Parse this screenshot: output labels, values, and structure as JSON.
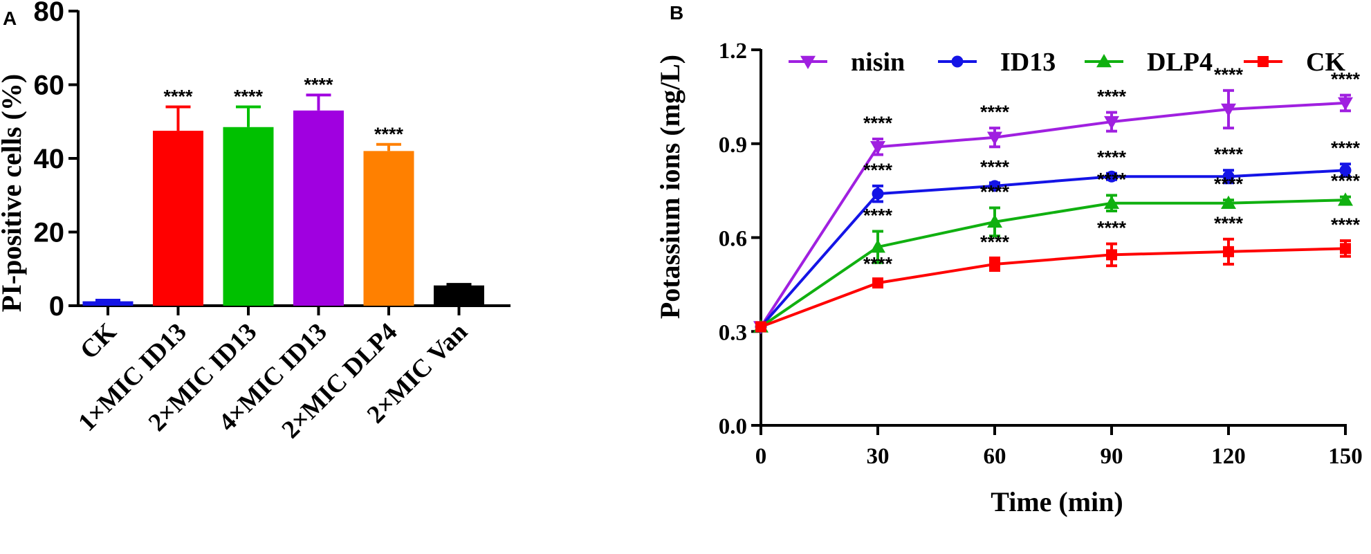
{
  "chart_data": [
    {
      "panel": "A",
      "type": "bar",
      "ylabel": "PI-positive cells (%)",
      "ylim": [
        0,
        80
      ],
      "yticks": [
        "0",
        "20",
        "40",
        "60",
        "80"
      ],
      "categories": [
        "CK",
        "1×MIC ID13",
        "2×MIC ID13",
        "4×MIC ID13",
        "2×MIC DLP4",
        "2×MIC Van"
      ],
      "values": [
        1.2,
        47.5,
        48.5,
        53.0,
        42.0,
        5.5
      ],
      "errors": [
        0.3,
        6.5,
        5.5,
        4.2,
        1.8,
        0.3
      ],
      "colors": [
        "#1414e6",
        "#ff0000",
        "#00c000",
        "#a000e0",
        "#ff8000",
        "#000000"
      ],
      "significance": [
        "",
        "****",
        "****",
        "****",
        "****",
        ""
      ]
    },
    {
      "panel": "B",
      "type": "line",
      "xlabel": "Time (min)",
      "ylabel": "Potassium ions (mg/L)",
      "xlim": [
        0,
        150
      ],
      "ylim": [
        0,
        1.2
      ],
      "xticks": [
        "0",
        "30",
        "60",
        "90",
        "120",
        "150"
      ],
      "yticks": [
        "0.0",
        "0.3",
        "0.6",
        "0.9",
        "1.2"
      ],
      "x": [
        0,
        30,
        60,
        90,
        120,
        150
      ],
      "series": [
        {
          "name": "nisin",
          "color": "#a020e0",
          "marker": "triangle-down",
          "values": [
            0.315,
            0.89,
            0.92,
            0.97,
            1.01,
            1.03
          ],
          "errors": [
            0,
            0.025,
            0.03,
            0.03,
            0.06,
            0.025
          ],
          "significance": [
            "",
            "****",
            "****",
            "****",
            "****",
            "****"
          ]
        },
        {
          "name": "ID13",
          "color": "#1414e6",
          "marker": "circle",
          "values": [
            0.315,
            0.74,
            0.765,
            0.795,
            0.795,
            0.815
          ],
          "errors": [
            0,
            0.025,
            0.01,
            0.01,
            0.02,
            0.02
          ],
          "significance": [
            "",
            "****",
            "****",
            "****",
            "****",
            "****"
          ]
        },
        {
          "name": "DLP4",
          "color": "#10b010",
          "marker": "triangle-up",
          "values": [
            0.315,
            0.57,
            0.65,
            0.71,
            0.71,
            0.72
          ],
          "errors": [
            0,
            0.05,
            0.045,
            0.025,
            0.01,
            0.01
          ],
          "significance": [
            "",
            "****",
            "****",
            "****",
            "****",
            "****"
          ]
        },
        {
          "name": "CK",
          "color": "#ff0000",
          "marker": "square",
          "values": [
            0.315,
            0.455,
            0.515,
            0.545,
            0.555,
            0.565
          ],
          "errors": [
            0,
            0.01,
            0.02,
            0.035,
            0.04,
            0.025
          ],
          "significance": [
            "",
            "****",
            "****",
            "****",
            "****",
            "****"
          ]
        }
      ]
    }
  ]
}
